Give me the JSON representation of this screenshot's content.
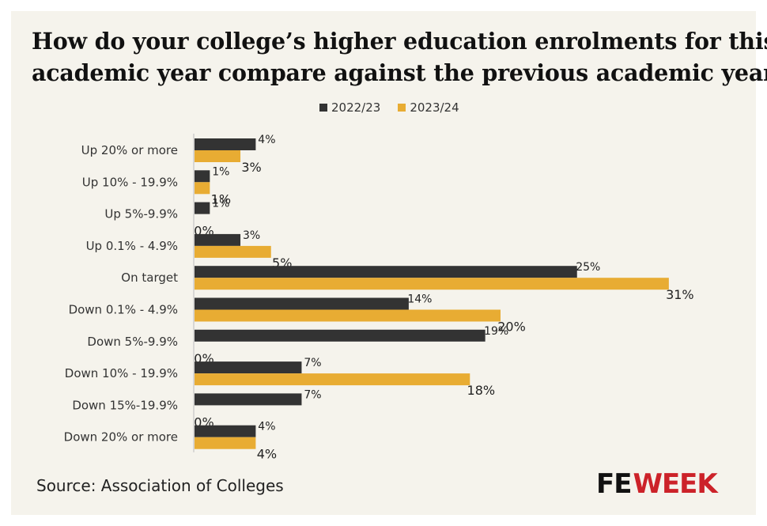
{
  "title_lines": [
    "How do your college’s higher education enrolments for this",
    "academic year compare against the previous academic year?"
  ],
  "source": "Source: Association of Colleges",
  "logo": {
    "fe": "FE",
    "week": "WEEK"
  },
  "colors": {
    "series_2022": "#333333",
    "series_2023": "#e8ac33",
    "logo_accent": "#cc2229"
  },
  "chart_data": {
    "type": "bar",
    "orientation": "horizontal",
    "title": "How do your college’s higher education enrolments for this academic year compare against the previous academic year?",
    "categories": [
      "Up 20% or more",
      "Up 10% - 19.9%",
      "Up 5%-9.9%",
      "Up 0.1% - 4.9%",
      "On target",
      "Down 0.1% - 4.9%",
      "Down 5%-9.9%",
      "Down 10% - 19.9%",
      "Down 15%-19.9%",
      "Down 20% or more"
    ],
    "series": [
      {
        "name": "2022/23",
        "color": "#333333",
        "values": [
          4,
          1,
          1,
          3,
          25,
          14,
          19,
          7,
          7,
          4
        ]
      },
      {
        "name": "2023/24",
        "color": "#e8ac33",
        "values": [
          3,
          1,
          0,
          5,
          31,
          20,
          0,
          18,
          0,
          4
        ]
      }
    ],
    "value_suffix": "%",
    "legend_position": "top",
    "grid": false
  }
}
